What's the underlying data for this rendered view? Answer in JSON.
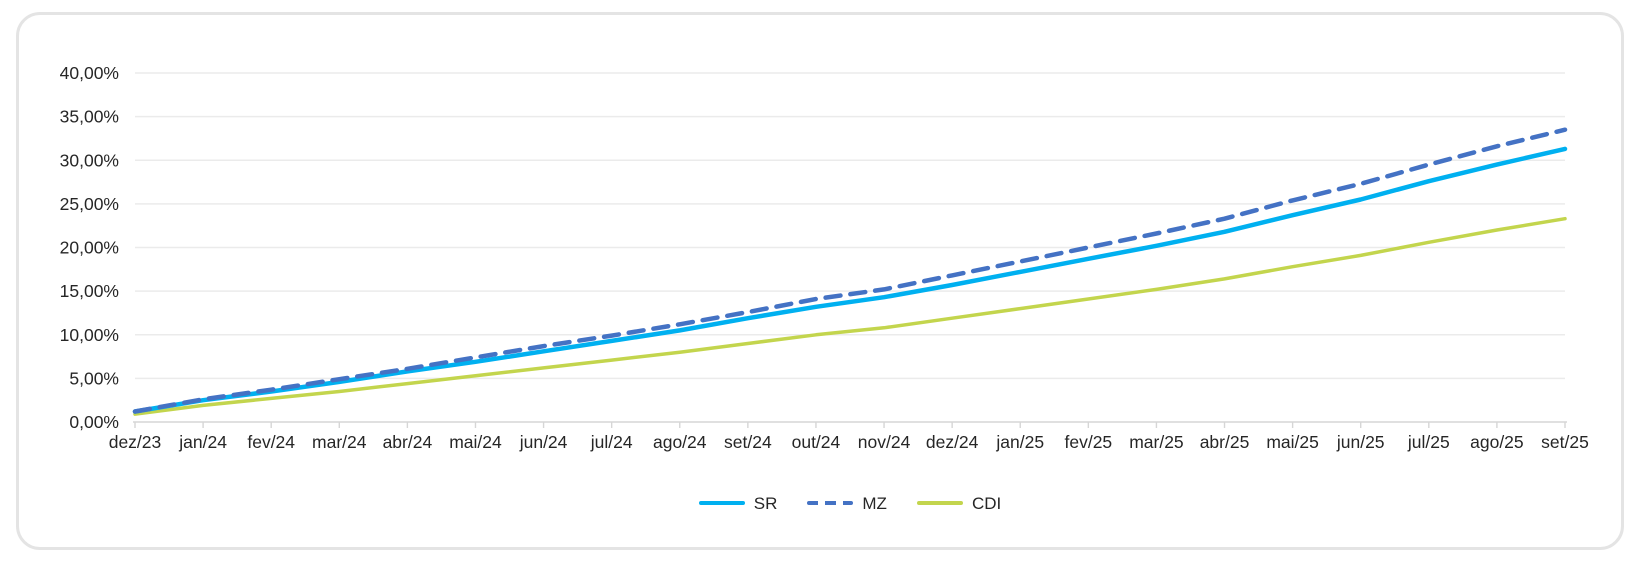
{
  "chart_data": {
    "type": "line",
    "title": "",
    "categories": [
      "dez/23",
      "jan/24",
      "fev/24",
      "mar/24",
      "abr/24",
      "mai/24",
      "jun/24",
      "jul/24",
      "ago/24",
      "set/24",
      "out/24",
      "nov/24",
      "dez/24",
      "jan/25",
      "fev/25",
      "mar/25",
      "abr/25",
      "mai/25",
      "jun/25",
      "jul/25",
      "ago/25",
      "set/25"
    ],
    "series": [
      {
        "name": "SR",
        "color": "#00B0F0",
        "style": "solid",
        "values": [
          1.2,
          2.5,
          3.5,
          4.6,
          5.8,
          6.9,
          8.1,
          9.3,
          10.5,
          11.9,
          13.2,
          14.3,
          15.7,
          17.2,
          18.7,
          20.2,
          21.8,
          23.7,
          25.5,
          27.6,
          29.5,
          31.3
        ]
      },
      {
        "name": "MZ",
        "color": "#4472C4",
        "style": "dashed",
        "values": [
          1.2,
          2.6,
          3.7,
          4.9,
          6.1,
          7.4,
          8.7,
          9.9,
          11.2,
          12.6,
          14.1,
          15.2,
          16.8,
          18.4,
          20.0,
          21.6,
          23.3,
          25.4,
          27.3,
          29.5,
          31.6,
          33.5
        ]
      },
      {
        "name": "CDI",
        "color": "#C3D54D",
        "style": "solid",
        "values": [
          0.9,
          1.9,
          2.7,
          3.5,
          4.4,
          5.3,
          6.2,
          7.1,
          8.0,
          9.0,
          10.0,
          10.8,
          11.9,
          13.0,
          14.1,
          15.2,
          16.4,
          17.8,
          19.1,
          20.6,
          22.0,
          23.3
        ]
      }
    ],
    "y_axis": {
      "min": 0,
      "max": 40,
      "step": 5,
      "tick_labels": [
        "0,00%",
        "5,00%",
        "10,00%",
        "15,00%",
        "20,00%",
        "25,00%",
        "30,00%",
        "35,00%",
        "40,00%"
      ]
    },
    "x_axis": {
      "label": ""
    },
    "legend_position": "bottom",
    "grid": true,
    "colors": {
      "gridline": "#ebebeb",
      "axis_line": "#d6d6d6",
      "tick_text": "#262626",
      "card_border": "#e4e4e4"
    }
  }
}
